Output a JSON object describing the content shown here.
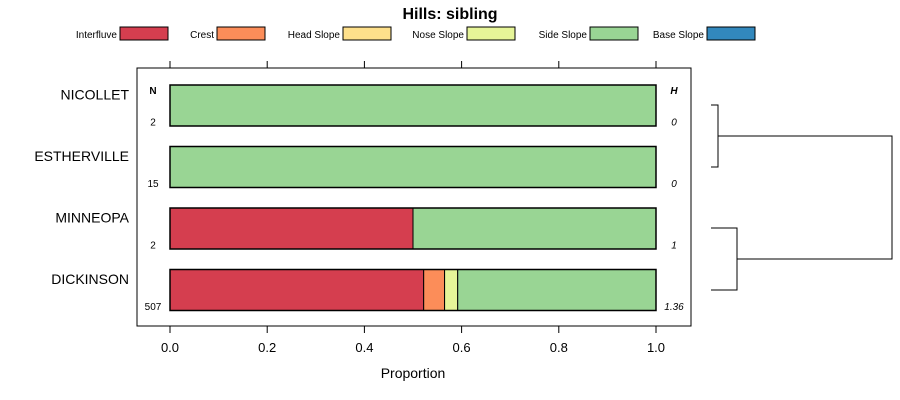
{
  "chart_data": {
    "type": "bar",
    "orientation": "horizontal",
    "stacked": true,
    "title": "Hills: sibling",
    "xlabel": "Proportion",
    "xlim": [
      0,
      1
    ],
    "x_ticks": [
      "0.0",
      "0.2",
      "0.4",
      "0.6",
      "0.8",
      "1.0"
    ],
    "x_tick_values": [
      0,
      0.2,
      0.4,
      0.6,
      0.8,
      1.0
    ],
    "legend_position": "top",
    "legend": [
      {
        "name": "Interfluve",
        "color": "#D53E4F"
      },
      {
        "name": "Crest",
        "color": "#FC8D59"
      },
      {
        "name": "Head Slope",
        "color": "#FEE08B"
      },
      {
        "name": "Nose Slope",
        "color": "#E6F598"
      },
      {
        "name": "Side Slope",
        "color": "#99D594"
      },
      {
        "name": "Base Slope",
        "color": "#3288BD"
      }
    ],
    "left_column_header": "N",
    "right_column_header": "H",
    "rows": [
      {
        "label": "NICOLLET",
        "n": "2",
        "h": "0",
        "values": [
          0,
          0,
          0,
          0,
          1.0,
          0
        ]
      },
      {
        "label": "ESTHERVILLE",
        "n": "15",
        "h": "0",
        "values": [
          0,
          0,
          0,
          0,
          1.0,
          0
        ]
      },
      {
        "label": "MINNEOPA",
        "n": "2",
        "h": "1",
        "values": [
          0.5,
          0,
          0,
          0,
          0.5,
          0
        ]
      },
      {
        "label": "DICKINSON",
        "n": "507",
        "h": "1.36",
        "values": [
          0.522,
          0.043,
          0,
          0.027,
          0.408,
          0
        ]
      }
    ],
    "dendrogram": {
      "merges": [
        {
          "left": "NICOLLET",
          "right": "ESTHERVILLE"
        },
        {
          "left": "MINNEOPA",
          "right": "DICKINSON"
        },
        {
          "left": "group-1",
          "right": "group-2"
        }
      ]
    }
  }
}
